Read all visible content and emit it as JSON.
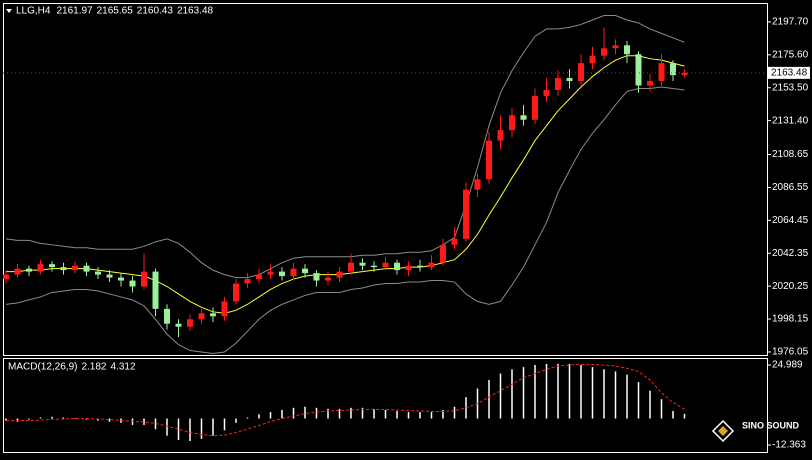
{
  "chart_data": [
    {
      "type": "candlestick",
      "title": "LLG,H4",
      "open": [
        2025,
        2028,
        2032,
        2030,
        2035,
        2033,
        2031,
        2034,
        2030,
        2028,
        2026,
        2024,
        2020,
        2030,
        2005,
        1995,
        1993,
        1998,
        2002,
        2000,
        2010,
        2022,
        2025,
        2028,
        2030,
        2027,
        2032,
        2029,
        2024,
        2026,
        2030,
        2036,
        2034,
        2033,
        2036,
        2031,
        2034,
        2033,
        2036,
        2048,
        2052,
        2085,
        2092,
        2118,
        2125,
        2135,
        2132,
        2148,
        2152,
        2160,
        2158,
        2170,
        2175,
        2180,
        2182,
        2176,
        2155,
        2158,
        2170,
        2161.97
      ],
      "high": [
        2031,
        2035,
        2034,
        2038,
        2037,
        2036,
        2037,
        2036,
        2033,
        2031,
        2029,
        2027,
        2042,
        2032,
        2008,
        1998,
        2001,
        2005,
        2006,
        2013,
        2025,
        2029,
        2032,
        2035,
        2033,
        2036,
        2035,
        2031,
        2030,
        2033,
        2042,
        2039,
        2037,
        2040,
        2038,
        2037,
        2038,
        2041,
        2052,
        2060,
        2090,
        2096,
        2124,
        2135,
        2140,
        2142,
        2153,
        2160,
        2165,
        2166,
        2176,
        2181,
        2194,
        2186,
        2185,
        2178,
        2163,
        2176,
        2172,
        2165.65
      ],
      "low": [
        2022,
        2026,
        2027,
        2028,
        2030,
        2028,
        2029,
        2027,
        2025,
        2023,
        2020,
        2016,
        2018,
        2000,
        1991,
        1986,
        1990,
        1995,
        1996,
        1997,
        2008,
        2019,
        2022,
        2025,
        2024,
        2024,
        2026,
        2020,
        2021,
        2023,
        2028,
        2031,
        2030,
        2031,
        2028,
        2027,
        2030,
        2031,
        2034,
        2045,
        2050,
        2080,
        2089,
        2112,
        2120,
        2128,
        2129,
        2144,
        2148,
        2153,
        2155,
        2166,
        2172,
        2176,
        2170,
        2150,
        2151,
        2155,
        2158,
        2160.43
      ],
      "close": [
        2028,
        2032,
        2030,
        2035,
        2033,
        2031,
        2034,
        2030,
        2028,
        2026,
        2024,
        2020,
        2030,
        2005,
        1995,
        1993,
        1998,
        2002,
        2000,
        2010,
        2022,
        2025,
        2028,
        2030,
        2027,
        2032,
        2029,
        2024,
        2026,
        2030,
        2036,
        2034,
        2033,
        2036,
        2031,
        2034,
        2033,
        2036,
        2048,
        2052,
        2085,
        2092,
        2118,
        2125,
        2135,
        2132,
        2148,
        2152,
        2160,
        2158,
        2170,
        2175,
        2180,
        2182,
        2176,
        2155,
        2158,
        2170,
        2161.97,
        2163.48
      ],
      "upper": [
        2052,
        2051,
        2051,
        2049,
        2048,
        2047,
        2046,
        2046,
        2045,
        2045,
        2045,
        2045,
        2047,
        2050,
        2052,
        2049,
        2043,
        2036,
        2031,
        2028,
        2026,
        2026,
        2028,
        2032,
        2036,
        2039,
        2040,
        2040,
        2040,
        2040,
        2040,
        2041,
        2041,
        2042,
        2042,
        2043,
        2043,
        2044,
        2048,
        2053,
        2075,
        2100,
        2128,
        2150,
        2165,
        2177,
        2188,
        2193,
        2193,
        2194,
        2196,
        2199,
        2202,
        2202,
        2199,
        2197,
        2193,
        2190,
        2187,
        2184
      ],
      "middle": [
        2030,
        2030,
        2031,
        2031,
        2032,
        2032,
        2032,
        2032,
        2031,
        2030,
        2029,
        2028,
        2027,
        2024,
        2020,
        2015,
        2010,
        2006,
        2003,
        2002,
        2004,
        2008,
        2013,
        2018,
        2022,
        2025,
        2027,
        2028,
        2028,
        2028,
        2029,
        2030,
        2031,
        2032,
        2032,
        2033,
        2033,
        2034,
        2036,
        2038,
        2045,
        2055,
        2068,
        2080,
        2093,
        2105,
        2118,
        2128,
        2138,
        2146,
        2154,
        2161,
        2167,
        2172,
        2175,
        2175,
        2173,
        2172,
        2170,
        2168
      ],
      "lower": [
        2008,
        2009,
        2011,
        2013,
        2016,
        2017,
        2018,
        2018,
        2017,
        2015,
        2013,
        2011,
        2007,
        1998,
        1988,
        1981,
        1977,
        1976,
        1975,
        1976,
        1982,
        1990,
        1998,
        2004,
        2008,
        2011,
        2014,
        2016,
        2016,
        2016,
        2018,
        2019,
        2021,
        2022,
        2022,
        2023,
        2023,
        2024,
        2024,
        2023,
        2015,
        2010,
        2008,
        2010,
        2021,
        2033,
        2048,
        2063,
        2083,
        2098,
        2112,
        2123,
        2132,
        2142,
        2151,
        2153,
        2153,
        2154,
        2153,
        2152
      ],
      "up_color": "#ff1a1a",
      "down_color": "#9cf09c",
      "band_color": "#8c8c8c",
      "middle_color": "#ffff33",
      "ylim": [
        1974,
        2210.4
      ],
      "yticks": [
        2197.7,
        2175.6,
        2153.5,
        2131.4,
        2108.65,
        2086.55,
        2064.45,
        2042.35,
        2020.25,
        1998.15,
        1976.05
      ]
    },
    {
      "type": "macd",
      "title": "MACD(12,26,9)",
      "histogram": [
        -1,
        -1.5,
        -0.5,
        0.5,
        0.8,
        0.5,
        0.3,
        -0.5,
        -1,
        -1.5,
        -2,
        -3,
        -3,
        -5,
        -8,
        -10,
        -10.5,
        -9.5,
        -8,
        -5.5,
        -2,
        0.5,
        2,
        3,
        4,
        5,
        5.5,
        5,
        4.5,
        4.5,
        5,
        5,
        4.5,
        4,
        3.5,
        3,
        3,
        3,
        4,
        5.5,
        10,
        14,
        18,
        21,
        23,
        24,
        25,
        25.5,
        25.5,
        25.5,
        25,
        24,
        23,
        22,
        20.5,
        17,
        13,
        9,
        3.5,
        2.182
      ],
      "signal": [
        -1,
        -1,
        -1,
        -0.7,
        -0.4,
        -0.2,
        0,
        0,
        -0.2,
        -0.5,
        -0.9,
        -1.3,
        -1.7,
        -2.3,
        -3.5,
        -5,
        -6.5,
        -7.5,
        -8,
        -7.8,
        -6.5,
        -5,
        -3.2,
        -1.5,
        0,
        1.2,
        2.3,
        3,
        3.5,
        3.8,
        4,
        4.2,
        4.3,
        4.2,
        4,
        3.8,
        3.5,
        3.3,
        3.3,
        3.7,
        5,
        7,
        10,
        13,
        16,
        19,
        21,
        23,
        24.5,
        25,
        25.3,
        25.3,
        25,
        24.5,
        23.5,
        22,
        18,
        12,
        7.5,
        4.312
      ],
      "histogram_color": "#ffffff",
      "signal_color": "#ff2020",
      "ylim": [
        -15.63,
        28.26
      ],
      "yticks": [
        24.989,
        -12.363
      ]
    }
  ],
  "logo": {
    "text": "SINO SOUND"
  }
}
